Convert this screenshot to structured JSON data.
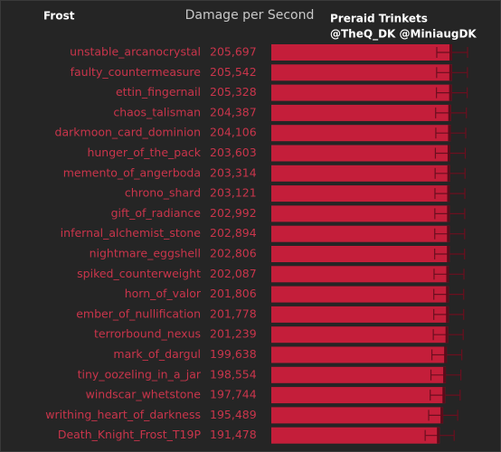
{
  "chart_data": {
    "type": "bar",
    "orientation": "horizontal",
    "title": "Damage per Second",
    "subtitle": "Frost",
    "annotations": [
      "Preraid Trinkets",
      "@TheQ_DK @MiniaugDK"
    ],
    "color": "#c41e3a",
    "categories": [
      "unstable_arcanocrystal",
      "faulty_countermeasure",
      "ettin_fingernail",
      "chaos_talisman",
      "darkmoon_card_dominion",
      "hunger_of_the_pack",
      "memento_of_angerboda",
      "chrono_shard",
      "gift_of_radiance",
      "infernal_alchemist_stone",
      "nightmare_eggshell",
      "spiked_counterweight",
      "horn_of_valor",
      "ember_of_nullification",
      "terrorbound_nexus",
      "mark_of_dargul",
      "tiny_oozeling_in_a_jar",
      "windscar_whetstone",
      "writhing_heart_of_darkness",
      "Death_Knight_Frost_T19P"
    ],
    "values": [
      205697,
      205542,
      205328,
      204387,
      204106,
      203603,
      203314,
      203121,
      202992,
      202894,
      202806,
      202087,
      201806,
      201778,
      201239,
      199638,
      198554,
      197744,
      195489,
      191478
    ],
    "value_labels": [
      "205,697",
      "205,542",
      "205,328",
      "204,387",
      "204,106",
      "203,603",
      "203,314",
      "203,121",
      "202,992",
      "202,894",
      "202,806",
      "202,087",
      "201,806",
      "201,778",
      "201,239",
      "199,638",
      "198,554",
      "197,744",
      "195,489",
      "191,478"
    ],
    "errors": [
      17500,
      17500,
      17500,
      17500,
      17000,
      17000,
      17000,
      17000,
      17000,
      17000,
      17000,
      17000,
      17000,
      17000,
      17000,
      17000,
      17000,
      17000,
      16500,
      16500
    ]
  }
}
